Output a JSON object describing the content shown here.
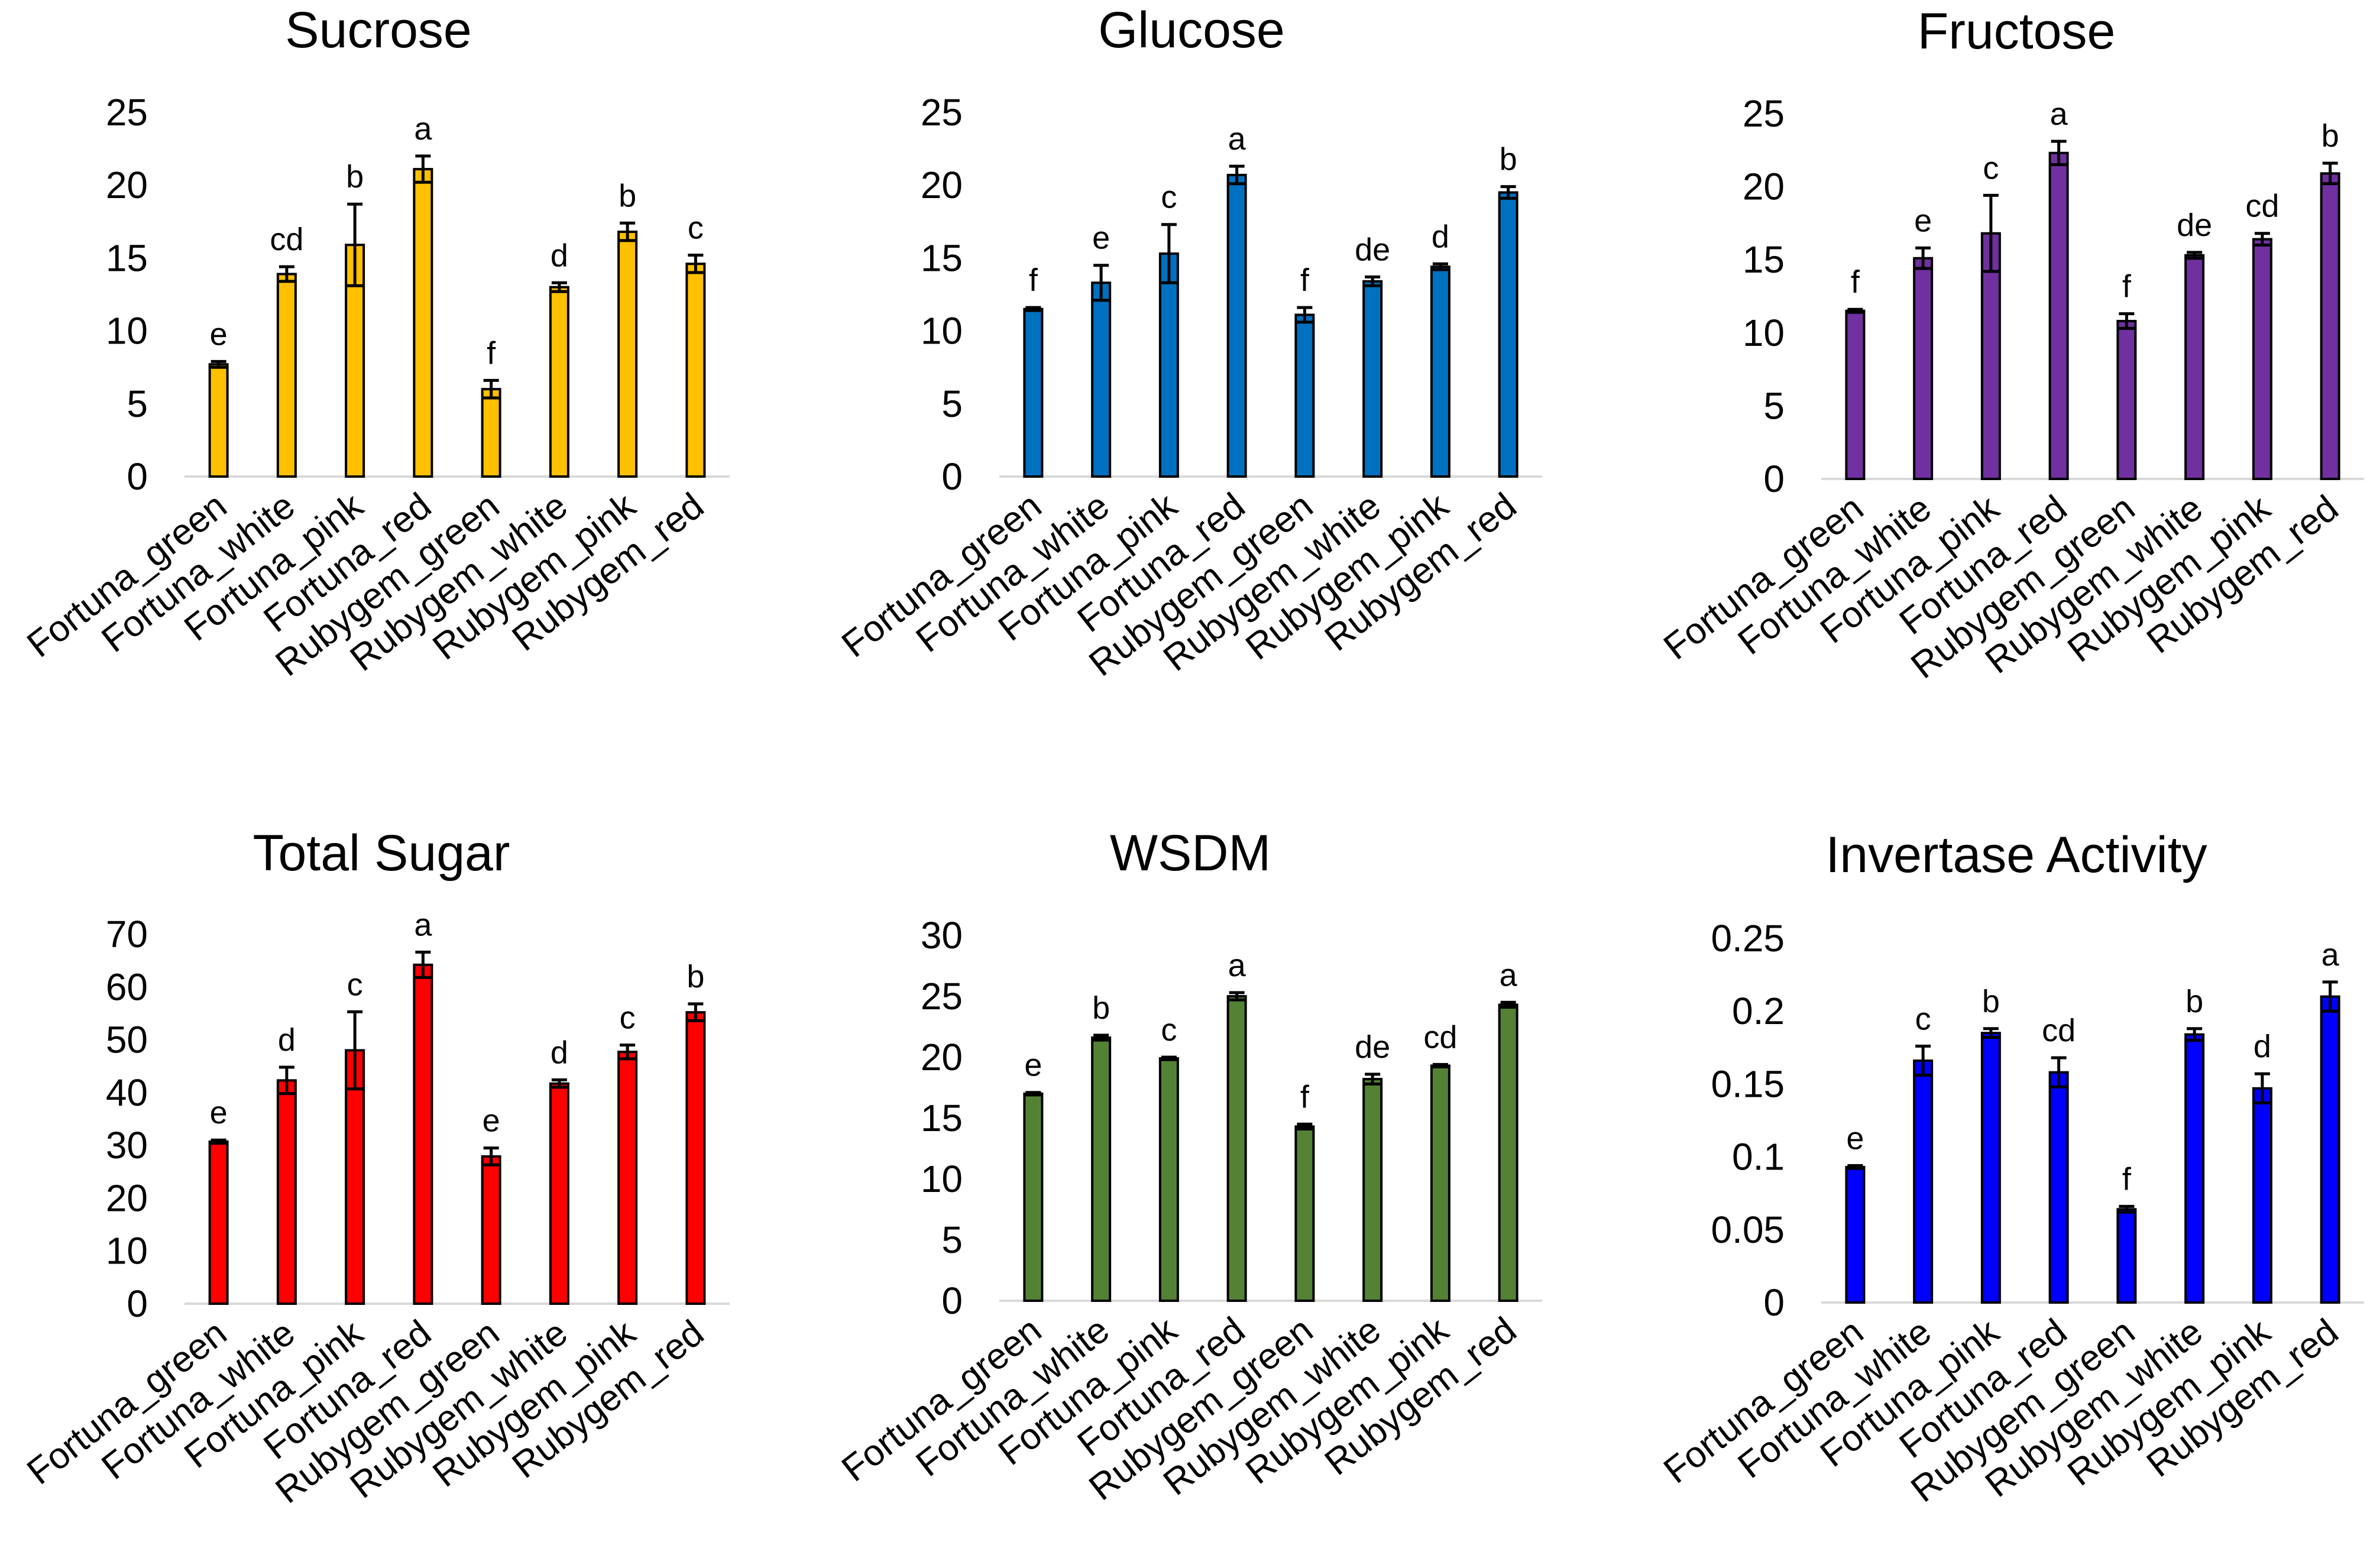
{
  "chart_data": [
    {
      "type": "bar",
      "title": "Sucrose",
      "color": "#FFC000",
      "categories": [
        "Fortuna_green",
        "Fortuna_white",
        "Fortuna_pink",
        "Fortuna_red",
        "Rubygem_green",
        "Rubygem_white",
        "Rubygem_pink",
        "Rubygem_red"
      ],
      "values": [
        7.7,
        13.9,
        15.9,
        21.1,
        6.0,
        13.0,
        16.8,
        14.6
      ],
      "errors": [
        0.2,
        0.5,
        2.8,
        0.9,
        0.6,
        0.3,
        0.6,
        0.6
      ],
      "significance": [
        "e",
        "cd",
        "b",
        "a",
        "f",
        "d",
        "b",
        "c"
      ],
      "ylim": [
        0,
        25
      ],
      "yticks": [
        "0",
        "5",
        "10",
        "15",
        "20",
        "25"
      ],
      "xlabel": "",
      "ylabel": ""
    },
    {
      "type": "bar",
      "title": "Glucose",
      "color": "#0070C0",
      "categories": [
        "Fortuna_green",
        "Fortuna_white",
        "Fortuna_pink",
        "Fortuna_red",
        "Rubygem_green",
        "Rubygem_white",
        "Rubygem_pink",
        "Rubygem_red"
      ],
      "values": [
        11.5,
        13.3,
        15.3,
        20.7,
        11.1,
        13.4,
        14.4,
        19.5
      ],
      "errors": [
        0.1,
        1.2,
        2.0,
        0.6,
        0.5,
        0.3,
        0.2,
        0.4
      ],
      "significance": [
        "f",
        "e",
        "c",
        "a",
        "f",
        "de",
        "d",
        "b"
      ],
      "ylim": [
        0,
        25
      ],
      "yticks": [
        "0",
        "5",
        "10",
        "15",
        "20",
        "25"
      ],
      "xlabel": "",
      "ylabel": ""
    },
    {
      "type": "bar",
      "title": "Fructose",
      "color": "#7030A0",
      "categories": [
        "Fortuna_green",
        "Fortuna_white",
        "Fortuna_pink",
        "Fortuna_red",
        "Rubygem_green",
        "Rubygem_white",
        "Rubygem_pink",
        "Rubygem_red"
      ],
      "values": [
        11.5,
        15.1,
        16.8,
        22.3,
        10.8,
        15.3,
        16.4,
        20.9
      ],
      "errors": [
        0.1,
        0.7,
        2.6,
        0.8,
        0.5,
        0.2,
        0.4,
        0.7
      ],
      "significance": [
        "f",
        "e",
        "c",
        "a",
        "f",
        "de",
        "cd",
        "b"
      ],
      "ylim": [
        0,
        25
      ],
      "yticks": [
        "0",
        "5",
        "10",
        "15",
        "20",
        "25"
      ],
      "xlabel": "",
      "ylabel": ""
    },
    {
      "type": "bar",
      "title": "Total Sugar",
      "color": "#FF0000",
      "categories": [
        "Fortuna_green",
        "Fortuna_white",
        "Fortuna_pink",
        "Fortuna_red",
        "Rubygem_green",
        "Rubygem_white",
        "Rubygem_pink",
        "Rubygem_red"
      ],
      "values": [
        30.7,
        42.3,
        48.0,
        64.2,
        27.9,
        41.7,
        47.7,
        55.2
      ],
      "errors": [
        0.3,
        2.5,
        7.3,
        2.4,
        1.6,
        0.7,
        1.3,
        1.6
      ],
      "significance": [
        "e",
        "d",
        "c",
        "a",
        "e",
        "d",
        "c",
        "b"
      ],
      "ylim": [
        0,
        70
      ],
      "yticks": [
        "0",
        "10",
        "20",
        "30",
        "40",
        "50",
        "60",
        "70"
      ],
      "xlabel": "",
      "ylabel": ""
    },
    {
      "type": "bar",
      "title": "WSDM",
      "color": "#548235",
      "categories": [
        "Fortuna_green",
        "Fortuna_white",
        "Fortuna_pink",
        "Fortuna_red",
        "Rubygem_green",
        "Rubygem_white",
        "Rubygem_pink",
        "Rubygem_red"
      ],
      "values": [
        17.0,
        21.6,
        19.9,
        25.0,
        14.3,
        18.2,
        19.3,
        24.3
      ],
      "errors": [
        0.1,
        0.2,
        0.1,
        0.3,
        0.2,
        0.4,
        0.1,
        0.2
      ],
      "significance": [
        "e",
        "b",
        "c",
        "a",
        "f",
        "de",
        "cd",
        "a"
      ],
      "ylim": [
        0,
        30
      ],
      "yticks": [
        "0",
        "5",
        "10",
        "15",
        "20",
        "25",
        "30"
      ],
      "xlabel": "",
      "ylabel": ""
    },
    {
      "type": "bar",
      "title": "Invertase Activity",
      "color": "#0000FF",
      "categories": [
        "Fortuna_green",
        "Fortuna_white",
        "Fortuna_pink",
        "Fortuna_red",
        "Rubygem_green",
        "Rubygem_white",
        "Rubygem_pink",
        "Rubygem_red"
      ],
      "values": [
        0.093,
        0.166,
        0.185,
        0.158,
        0.064,
        0.184,
        0.147,
        0.21
      ],
      "errors": [
        0.001,
        0.01,
        0.003,
        0.01,
        0.002,
        0.004,
        0.01,
        0.01
      ],
      "significance": [
        "e",
        "c",
        "b",
        "cd",
        "f",
        "b",
        "d",
        "a"
      ],
      "ylim": [
        0,
        0.25
      ],
      "yticks": [
        "0",
        "0.05",
        "0.1",
        "0.15",
        "0.2",
        "0.25"
      ],
      "xlabel": "",
      "ylabel": ""
    }
  ]
}
